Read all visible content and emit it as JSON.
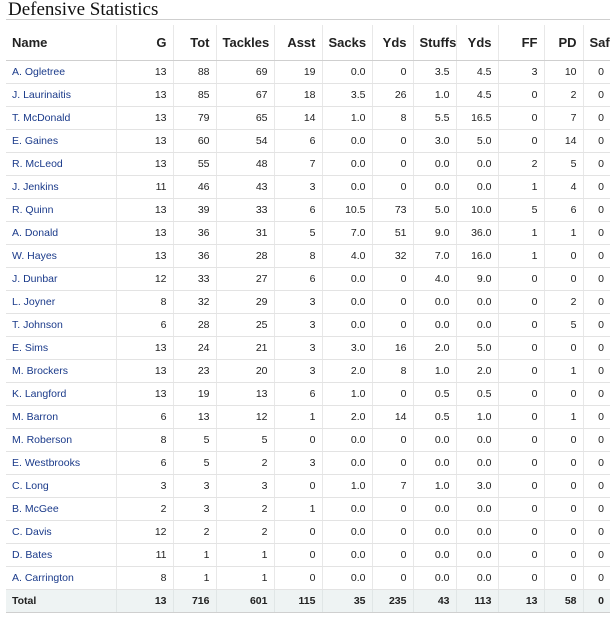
{
  "title": "Defensive Statistics",
  "columns": [
    "Name",
    "G",
    "Tot",
    "Tackles",
    "Asst",
    "Sacks",
    "Yds",
    "Stuffs",
    "Yds",
    "FF",
    "PD",
    "Safety"
  ],
  "rows": [
    [
      "A. Ogletree",
      "13",
      "88",
      "69",
      "19",
      "0.0",
      "0",
      "3.5",
      "4.5",
      "3",
      "10",
      "0"
    ],
    [
      "J. Laurinaitis",
      "13",
      "85",
      "67",
      "18",
      "3.5",
      "26",
      "1.0",
      "4.5",
      "0",
      "2",
      "0"
    ],
    [
      "T. McDonald",
      "13",
      "79",
      "65",
      "14",
      "1.0",
      "8",
      "5.5",
      "16.5",
      "0",
      "7",
      "0"
    ],
    [
      "E. Gaines",
      "13",
      "60",
      "54",
      "6",
      "0.0",
      "0",
      "3.0",
      "5.0",
      "0",
      "14",
      "0"
    ],
    [
      "R. McLeod",
      "13",
      "55",
      "48",
      "7",
      "0.0",
      "0",
      "0.0",
      "0.0",
      "2",
      "5",
      "0"
    ],
    [
      "J. Jenkins",
      "11",
      "46",
      "43",
      "3",
      "0.0",
      "0",
      "0.0",
      "0.0",
      "1",
      "4",
      "0"
    ],
    [
      "R. Quinn",
      "13",
      "39",
      "33",
      "6",
      "10.5",
      "73",
      "5.0",
      "10.0",
      "5",
      "6",
      "0"
    ],
    [
      "A. Donald",
      "13",
      "36",
      "31",
      "5",
      "7.0",
      "51",
      "9.0",
      "36.0",
      "1",
      "1",
      "0"
    ],
    [
      "W. Hayes",
      "13",
      "36",
      "28",
      "8",
      "4.0",
      "32",
      "7.0",
      "16.0",
      "1",
      "0",
      "0"
    ],
    [
      "J. Dunbar",
      "12",
      "33",
      "27",
      "6",
      "0.0",
      "0",
      "4.0",
      "9.0",
      "0",
      "0",
      "0"
    ],
    [
      "L. Joyner",
      "8",
      "32",
      "29",
      "3",
      "0.0",
      "0",
      "0.0",
      "0.0",
      "0",
      "2",
      "0"
    ],
    [
      "T. Johnson",
      "6",
      "28",
      "25",
      "3",
      "0.0",
      "0",
      "0.0",
      "0.0",
      "0",
      "5",
      "0"
    ],
    [
      "E. Sims",
      "13",
      "24",
      "21",
      "3",
      "3.0",
      "16",
      "2.0",
      "5.0",
      "0",
      "0",
      "0"
    ],
    [
      "M. Brockers",
      "13",
      "23",
      "20",
      "3",
      "2.0",
      "8",
      "1.0",
      "2.0",
      "0",
      "1",
      "0"
    ],
    [
      "K. Langford",
      "13",
      "19",
      "13",
      "6",
      "1.0",
      "0",
      "0.5",
      "0.5",
      "0",
      "0",
      "0"
    ],
    [
      "M. Barron",
      "6",
      "13",
      "12",
      "1",
      "2.0",
      "14",
      "0.5",
      "1.0",
      "0",
      "1",
      "0"
    ],
    [
      "M. Roberson",
      "8",
      "5",
      "5",
      "0",
      "0.0",
      "0",
      "0.0",
      "0.0",
      "0",
      "0",
      "0"
    ],
    [
      "E. Westbrooks",
      "6",
      "5",
      "2",
      "3",
      "0.0",
      "0",
      "0.0",
      "0.0",
      "0",
      "0",
      "0"
    ],
    [
      "C. Long",
      "3",
      "3",
      "3",
      "0",
      "1.0",
      "7",
      "1.0",
      "3.0",
      "0",
      "0",
      "0"
    ],
    [
      "B. McGee",
      "2",
      "3",
      "2",
      "1",
      "0.0",
      "0",
      "0.0",
      "0.0",
      "0",
      "0",
      "0"
    ],
    [
      "C. Davis",
      "12",
      "2",
      "2",
      "0",
      "0.0",
      "0",
      "0.0",
      "0.0",
      "0",
      "0",
      "0"
    ],
    [
      "D. Bates",
      "11",
      "1",
      "1",
      "0",
      "0.0",
      "0",
      "0.0",
      "0.0",
      "0",
      "0",
      "0"
    ],
    [
      "A. Carrington",
      "8",
      "1",
      "1",
      "0",
      "0.0",
      "0",
      "0.0",
      "0.0",
      "0",
      "0",
      "0"
    ]
  ],
  "total": [
    "Total",
    "13",
    "716",
    "601",
    "115",
    "35",
    "235",
    "43",
    "113",
    "13",
    "58",
    "0"
  ],
  "colors": {
    "name_link": "#1a3a8a",
    "header_rule": "#cfcfcf",
    "total_bg": "#eef3f3"
  }
}
